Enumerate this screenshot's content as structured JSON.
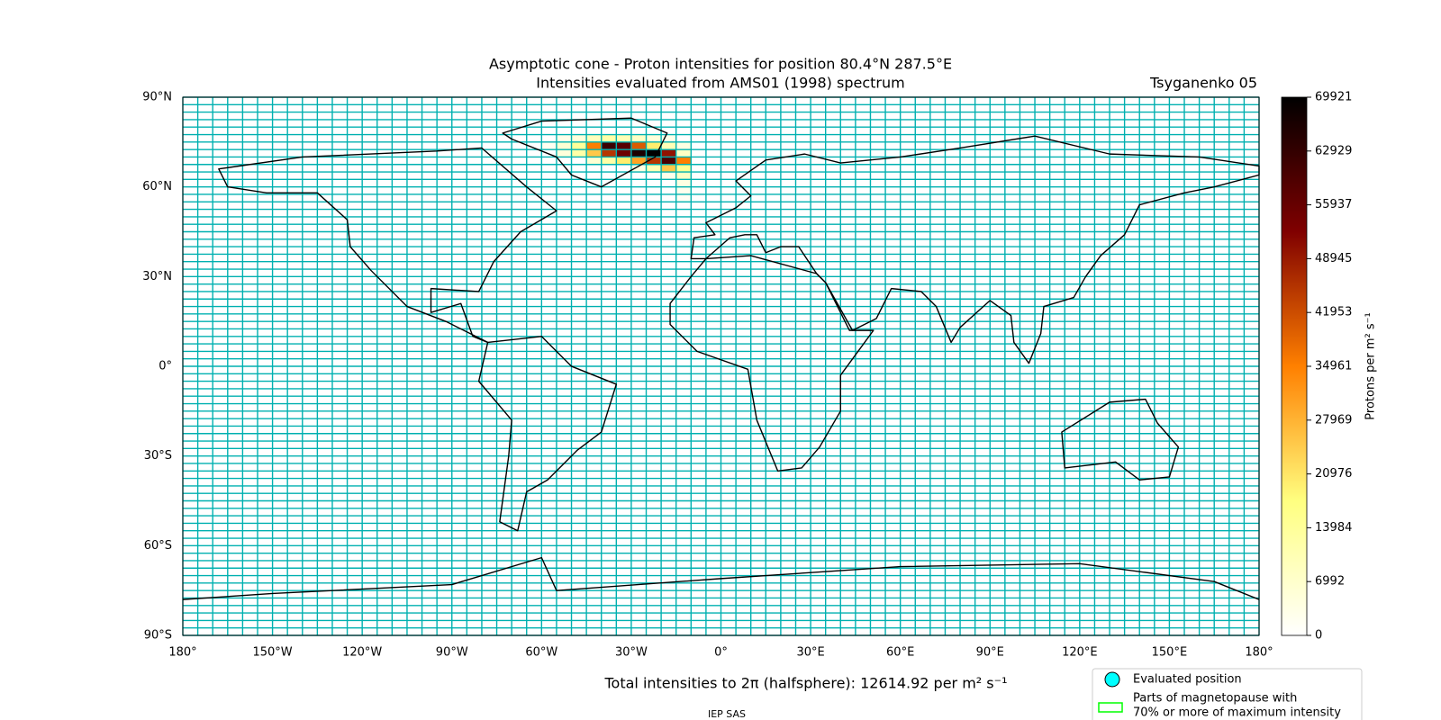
{
  "chart_data": {
    "type": "heatmap",
    "title": [
      "Asymptotic cone - Proton intensities for position 80.4°N 287.5°E",
      "Intensities evaluated from AMS01 (1998) spectrum"
    ],
    "model": "Tsyganenko 05",
    "xlim": [
      -180,
      180
    ],
    "ylim": [
      -90,
      90
    ],
    "xticks": [
      {
        "value": -180,
        "label": "180°"
      },
      {
        "value": -150,
        "label": "150°W"
      },
      {
        "value": -120,
        "label": "120°W"
      },
      {
        "value": -90,
        "label": "90°W"
      },
      {
        "value": -60,
        "label": "60°W"
      },
      {
        "value": -30,
        "label": "30°W"
      },
      {
        "value": 0,
        "label": "0°"
      },
      {
        "value": 30,
        "label": "30°E"
      },
      {
        "value": 60,
        "label": "60°E"
      },
      {
        "value": 90,
        "label": "90°E"
      },
      {
        "value": 120,
        "label": "120°E"
      },
      {
        "value": 150,
        "label": "150°E"
      },
      {
        "value": 180,
        "label": "180°"
      }
    ],
    "yticks": [
      {
        "value": 90,
        "label": "90°N"
      },
      {
        "value": 60,
        "label": "60°N"
      },
      {
        "value": 30,
        "label": "30°N"
      },
      {
        "value": 0,
        "label": "0°"
      },
      {
        "value": -30,
        "label": "30°S"
      },
      {
        "value": -60,
        "label": "60°S"
      },
      {
        "value": -90,
        "label": "90°S"
      }
    ],
    "grid": true,
    "cell_size": [
      5,
      2.5
    ],
    "cell_grid_color": "#00b0b0",
    "colormap": "afmhot_r",
    "colorbar_label": "Protons per m² s⁻¹",
    "clim": [
      0,
      69921
    ],
    "cticks": [
      0,
      6992,
      13984,
      20976,
      27969,
      34961,
      41953,
      48945,
      55937,
      62929,
      69921
    ],
    "cells": [
      {
        "lon": -55,
        "lat": 75,
        "value": 3000
      },
      {
        "lon": -50,
        "lat": 75,
        "value": 5000
      },
      {
        "lon": -45,
        "lat": 75,
        "value": 9000
      },
      {
        "lon": -40,
        "lat": 75,
        "value": 12000
      },
      {
        "lon": -35,
        "lat": 75,
        "value": 10000
      },
      {
        "lon": -30,
        "lat": 75,
        "value": 8000
      },
      {
        "lon": -25,
        "lat": 75,
        "value": 5000
      },
      {
        "lon": -20,
        "lat": 75,
        "value": 3000
      },
      {
        "lon": -60,
        "lat": 72.5,
        "value": 2000
      },
      {
        "lon": -55,
        "lat": 72.5,
        "value": 6000
      },
      {
        "lon": -50,
        "lat": 72.5,
        "value": 14000
      },
      {
        "lon": -45,
        "lat": 72.5,
        "value": 35000
      },
      {
        "lon": -40,
        "lat": 72.5,
        "value": 62000
      },
      {
        "lon": -35,
        "lat": 72.5,
        "value": 58000
      },
      {
        "lon": -30,
        "lat": 72.5,
        "value": 40000
      },
      {
        "lon": -25,
        "lat": 72.5,
        "value": 20000
      },
      {
        "lon": -20,
        "lat": 72.5,
        "value": 10000
      },
      {
        "lon": -15,
        "lat": 72.5,
        "value": 4000
      },
      {
        "lon": -55,
        "lat": 70,
        "value": 5000
      },
      {
        "lon": -50,
        "lat": 70,
        "value": 12000
      },
      {
        "lon": -45,
        "lat": 70,
        "value": 25000
      },
      {
        "lon": -40,
        "lat": 70,
        "value": 45000
      },
      {
        "lon": -35,
        "lat": 70,
        "value": 55000
      },
      {
        "lon": -30,
        "lat": 70,
        "value": 66000
      },
      {
        "lon": -25,
        "lat": 70,
        "value": 69921
      },
      {
        "lon": -20,
        "lat": 70,
        "value": 50000
      },
      {
        "lon": -15,
        "lat": 70,
        "value": 8000
      },
      {
        "lon": -45,
        "lat": 67.5,
        "value": 6000
      },
      {
        "lon": -40,
        "lat": 67.5,
        "value": 12000
      },
      {
        "lon": -35,
        "lat": 67.5,
        "value": 20000
      },
      {
        "lon": -30,
        "lat": 67.5,
        "value": 30000
      },
      {
        "lon": -25,
        "lat": 67.5,
        "value": 45000
      },
      {
        "lon": -20,
        "lat": 67.5,
        "value": 60000
      },
      {
        "lon": -15,
        "lat": 67.5,
        "value": 35000
      },
      {
        "lon": -30,
        "lat": 65,
        "value": 4000
      },
      {
        "lon": -25,
        "lat": 65,
        "value": 10000
      },
      {
        "lon": -20,
        "lat": 65,
        "value": 25000
      },
      {
        "lon": -15,
        "lat": 65,
        "value": 15000
      },
      {
        "lon": -20,
        "lat": 62.5,
        "value": 3000
      },
      {
        "lon": -15,
        "lat": 62.5,
        "value": 8000
      },
      {
        "lon": -15,
        "lat": 60,
        "value": 4000
      },
      {
        "lon": -15,
        "lat": 57.5,
        "value": 2500
      },
      {
        "lon": -15,
        "lat": 55,
        "value": 1500
      }
    ],
    "total_text": "Total intensities to 2π (halfsphere): 12614.92 per m² s⁻¹",
    "footer": "IEP SAS",
    "legend": [
      {
        "name": "Evaluated position",
        "color": "#00ffff"
      },
      {
        "name": [
          "Parts of magnetopause with",
          "70% or more of maximum intensity"
        ],
        "color": "#00ff00"
      }
    ]
  }
}
